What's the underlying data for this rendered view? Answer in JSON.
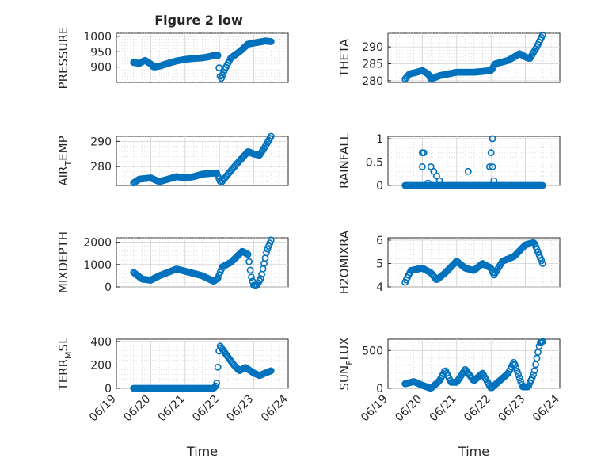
{
  "figure": {
    "title": "Figure 2 low"
  },
  "chart_data": [
    {
      "type": "scatter",
      "ylabel": "PRESSURE",
      "xlim": [
        "06/19",
        "06/24"
      ],
      "ylim": [
        850,
        1010
      ],
      "yticks": [
        900,
        950,
        1000
      ],
      "xticks": [],
      "xlabel": "",
      "grid": true,
      "color": "#0072BD",
      "anchors": [
        [
          "06/19 12:00",
          915
        ],
        [
          "06/19 16:00",
          912
        ],
        [
          "06/19 20:00",
          922
        ],
        [
          "06/20 00:00",
          910
        ],
        [
          "06/20 02:00",
          900
        ],
        [
          "06/20 06:00",
          903
        ],
        [
          "06/20 12:00",
          912
        ],
        [
          "06/20 18:00",
          920
        ],
        [
          "06/21 00:00",
          925
        ],
        [
          "06/21 06:00",
          928
        ],
        [
          "06/21 12:00",
          930
        ],
        [
          "06/21 18:00",
          935
        ],
        [
          "06/21 21:00",
          940
        ],
        [
          "06/21 23:00",
          938
        ],
        [
          "06/22 00:00",
          880
        ],
        [
          "06/22 01:00",
          860
        ],
        [
          "06/22 04:00",
          895
        ],
        [
          "06/22 08:00",
          930
        ],
        [
          "06/22 14:00",
          950
        ],
        [
          "06/22 20:00",
          975
        ],
        [
          "06/23 02:00",
          980
        ],
        [
          "06/23 08:00",
          985
        ],
        [
          "06/23 12:00",
          983
        ]
      ]
    },
    {
      "type": "scatter",
      "ylabel": "THETA",
      "xlim": [
        "06/19",
        "06/24"
      ],
      "ylim": [
        279.5,
        294
      ],
      "yticks": [
        280,
        285,
        290
      ],
      "xticks": [],
      "xlabel": "",
      "grid": true,
      "color": "#0072BD",
      "anchors": [
        [
          "06/19 12:00",
          280.5
        ],
        [
          "06/19 15:00",
          282
        ],
        [
          "06/19 20:00",
          282.5
        ],
        [
          "06/20 00:00",
          283
        ],
        [
          "06/20 04:00",
          282
        ],
        [
          "06/20 06:00",
          280.5
        ],
        [
          "06/20 12:00",
          281.5
        ],
        [
          "06/21 00:00",
          282.5
        ],
        [
          "06/21 12:00",
          282.5
        ],
        [
          "06/22 00:00",
          283
        ],
        [
          "06/22 03:00",
          285
        ],
        [
          "06/22 12:00",
          286
        ],
        [
          "06/22 20:00",
          288
        ],
        [
          "06/23 00:00",
          287
        ],
        [
          "06/23 03:00",
          286.5
        ],
        [
          "06/23 08:00",
          290
        ],
        [
          "06/23 12:00",
          293.5
        ]
      ]
    },
    {
      "type": "scatter",
      "ylabel": "AIR",
      "ylabel_sub": "T",
      "ylabel_suffix": "EMP",
      "xlim": [
        "06/19",
        "06/24"
      ],
      "ylim": [
        272.5,
        292
      ],
      "yticks": [
        280,
        290
      ],
      "xticks": [],
      "xlabel": "",
      "grid": true,
      "color": "#0072BD",
      "anchors": [
        [
          "06/19 12:00",
          273.5
        ],
        [
          "06/19 16:00",
          275
        ],
        [
          "06/20 00:00",
          275.5
        ],
        [
          "06/20 06:00",
          274
        ],
        [
          "06/20 12:00",
          275
        ],
        [
          "06/20 18:00",
          276
        ],
        [
          "06/21 00:00",
          275.5
        ],
        [
          "06/21 06:00",
          276
        ],
        [
          "06/21 12:00",
          277
        ],
        [
          "06/21 22:00",
          277.5
        ],
        [
          "06/22 01:00",
          273.5
        ],
        [
          "06/22 06:00",
          277
        ],
        [
          "06/22 12:00",
          281
        ],
        [
          "06/22 20:00",
          286
        ],
        [
          "06/23 00:00",
          285
        ],
        [
          "06/23 04:00",
          284.5
        ],
        [
          "06/23 08:00",
          288
        ],
        [
          "06/23 12:00",
          292
        ]
      ]
    },
    {
      "type": "scatter",
      "ylabel": "RAINFALL",
      "xlim": [
        "06/19",
        "06/24"
      ],
      "ylim": [
        0,
        1.05
      ],
      "yticks": [
        0,
        0.5,
        1
      ],
      "xticks": [],
      "xlabel": "",
      "grid": true,
      "color": "#0072BD",
      "anchors": [
        [
          "06/19 12:00",
          0
        ],
        [
          "06/23 12:00",
          0
        ]
      ],
      "extra_points": [
        [
          "06/20 00:00",
          0.7
        ],
        [
          "06/20 01:00",
          0.7
        ],
        [
          "06/20 00:00",
          0.4
        ],
        [
          "06/20 06:00",
          0.4
        ],
        [
          "06/20 08:00",
          0.3
        ],
        [
          "06/20 10:00",
          0.2
        ],
        [
          "06/20 04:00",
          0.05
        ],
        [
          "06/20 12:00",
          0.1
        ],
        [
          "06/21 08:00",
          0.3
        ],
        [
          "06/22 00:00",
          0.7
        ],
        [
          "06/22 01:00",
          1.0
        ],
        [
          "06/21 23:00",
          0.4
        ],
        [
          "06/22 01:00",
          0.4
        ],
        [
          "06/22 02:00",
          0.1
        ]
      ]
    },
    {
      "type": "scatter",
      "ylabel": "MIXDEPTH",
      "xlim": [
        "06/19",
        "06/24"
      ],
      "ylim": [
        0,
        2200
      ],
      "yticks": [
        0,
        1000,
        2000
      ],
      "xticks": [],
      "xlabel": "",
      "grid": true,
      "color": "#0072BD",
      "anchors": [
        [
          "06/19 12:00",
          650
        ],
        [
          "06/19 18:00",
          350
        ],
        [
          "06/20 00:00",
          300
        ],
        [
          "06/20 06:00",
          500
        ],
        [
          "06/20 18:00",
          800
        ],
        [
          "06/21 06:00",
          600
        ],
        [
          "06/21 12:00",
          500
        ],
        [
          "06/21 20:00",
          250
        ],
        [
          "06/21 23:00",
          400
        ],
        [
          "06/22 02:00",
          900
        ],
        [
          "06/22 08:00",
          1100
        ],
        [
          "06/22 16:00",
          1600
        ],
        [
          "06/22 20:00",
          1450
        ],
        [
          "06/22 22:00",
          500
        ],
        [
          "06/23 00:00",
          50
        ],
        [
          "06/23 02:00",
          50
        ],
        [
          "06/23 05:00",
          400
        ],
        [
          "06/23 09:00",
          1600
        ],
        [
          "06/23 12:00",
          2100
        ]
      ]
    },
    {
      "type": "scatter",
      "ylabel": "H2OMIXRA",
      "xlim": [
        "06/19",
        "06/24"
      ],
      "ylim": [
        4,
        6.1
      ],
      "yticks": [
        4,
        5,
        6
      ],
      "xticks": [],
      "xlabel": "",
      "grid": true,
      "color": "#0072BD",
      "anchors": [
        [
          "06/19 12:00",
          4.2
        ],
        [
          "06/19 16:00",
          4.7
        ],
        [
          "06/20 00:00",
          4.8
        ],
        [
          "06/20 06:00",
          4.6
        ],
        [
          "06/20 10:00",
          4.3
        ],
        [
          "06/20 16:00",
          4.6
        ],
        [
          "06/21 00:00",
          5.1
        ],
        [
          "06/21 06:00",
          4.8
        ],
        [
          "06/21 12:00",
          4.7
        ],
        [
          "06/21 18:00",
          5.0
        ],
        [
          "06/22 00:00",
          4.8
        ],
        [
          "06/22 02:00",
          4.5
        ],
        [
          "06/22 08:00",
          5.1
        ],
        [
          "06/22 16:00",
          5.3
        ],
        [
          "06/23 00:00",
          5.8
        ],
        [
          "06/23 06:00",
          5.9
        ],
        [
          "06/23 12:00",
          5.0
        ]
      ]
    },
    {
      "type": "scatter",
      "ylabel": "TERR",
      "ylabel_sub": "M",
      "ylabel_suffix": "SL",
      "xlim": [
        "06/19",
        "06/24"
      ],
      "ylim": [
        0,
        420
      ],
      "yticks": [
        0,
        200,
        400
      ],
      "xticks": [
        "06/19",
        "06/20",
        "06/21",
        "06/22",
        "06/23",
        "06/24"
      ],
      "xlabel": "Time",
      "grid": true,
      "color": "#0072BD",
      "anchors": [
        [
          "06/19 12:00",
          0
        ],
        [
          "06/21 20:00",
          0
        ],
        [
          "06/21 22:00",
          30
        ],
        [
          "06/22 00:00",
          370
        ],
        [
          "06/22 04:00",
          300
        ],
        [
          "06/22 10:00",
          200
        ],
        [
          "06/22 14:00",
          150
        ],
        [
          "06/22 18:00",
          180
        ],
        [
          "06/23 00:00",
          130
        ],
        [
          "06/23 04:00",
          110
        ],
        [
          "06/23 08:00",
          130
        ],
        [
          "06/23 12:00",
          150
        ]
      ]
    },
    {
      "type": "scatter",
      "ylabel": "SUN",
      "ylabel_sub": "F",
      "ylabel_suffix": "LUX",
      "xlim": [
        "06/19",
        "06/24"
      ],
      "ylim": [
        0,
        650
      ],
      "yticks": [
        0,
        500
      ],
      "xticks": [
        "06/19",
        "06/20",
        "06/21",
        "06/22",
        "06/23",
        "06/24"
      ],
      "xlabel": "Time",
      "grid": true,
      "color": "#0072BD",
      "anchors": [
        [
          "06/19 12:00",
          60
        ],
        [
          "06/19 18:00",
          90
        ],
        [
          "06/20 00:00",
          40
        ],
        [
          "06/20 06:00",
          0
        ],
        [
          "06/20 12:00",
          100
        ],
        [
          "06/20 16:00",
          240
        ],
        [
          "06/20 20:00",
          80
        ],
        [
          "06/21 00:00",
          80
        ],
        [
          "06/21 06:00",
          250
        ],
        [
          "06/21 12:00",
          100
        ],
        [
          "06/21 18:00",
          200
        ],
        [
          "06/22 00:00",
          0
        ],
        [
          "06/22 06:00",
          100
        ],
        [
          "06/22 12:00",
          200
        ],
        [
          "06/22 16:00",
          350
        ],
        [
          "06/22 22:00",
          20
        ],
        [
          "06/23 02:00",
          20
        ],
        [
          "06/23 06:00",
          200
        ],
        [
          "06/23 10:00",
          600
        ],
        [
          "06/23 12:00",
          620
        ]
      ]
    }
  ]
}
